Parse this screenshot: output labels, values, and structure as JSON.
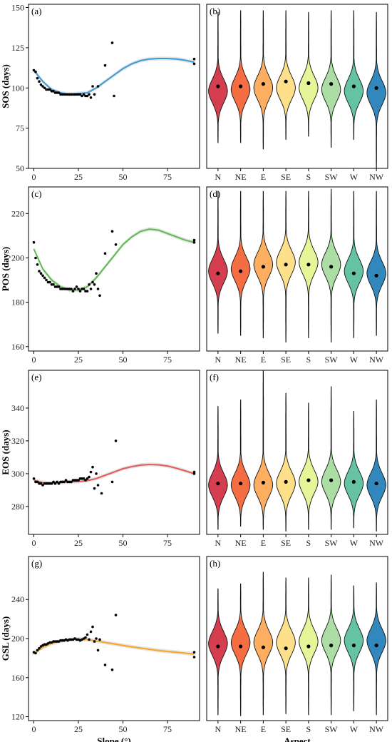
{
  "chart_data": [
    {
      "panel": "(a)",
      "type": "scatter",
      "ylabel": "SOS (days)",
      "xlim": [
        -3,
        93
      ],
      "ylim": [
        50,
        152
      ],
      "xticks": [
        "0",
        "25",
        "50",
        "75"
      ],
      "yticks": [
        "50",
        "75",
        "100",
        "125",
        "150"
      ],
      "curve_color": "#3A9AD9",
      "points": [
        [
          0,
          111
        ],
        [
          1,
          110
        ],
        [
          2,
          106
        ],
        [
          3,
          104
        ],
        [
          4,
          102
        ],
        [
          5,
          101
        ],
        [
          6,
          100
        ],
        [
          7,
          99
        ],
        [
          8,
          99
        ],
        [
          9,
          99
        ],
        [
          10,
          98
        ],
        [
          11,
          98
        ],
        [
          12,
          97
        ],
        [
          13,
          97
        ],
        [
          14,
          97
        ],
        [
          15,
          96
        ],
        [
          16,
          96
        ],
        [
          17,
          96
        ],
        [
          18,
          96
        ],
        [
          19,
          96
        ],
        [
          20,
          96
        ],
        [
          21,
          96
        ],
        [
          22,
          96
        ],
        [
          23,
          96
        ],
        [
          24,
          96
        ],
        [
          25,
          96
        ],
        [
          26,
          96
        ],
        [
          27,
          95
        ],
        [
          28,
          96
        ],
        [
          29,
          95
        ],
        [
          30,
          95
        ],
        [
          31,
          96
        ],
        [
          32,
          94
        ],
        [
          33,
          101
        ],
        [
          34,
          96
        ],
        [
          36,
          101
        ],
        [
          40,
          114
        ],
        [
          44,
          128
        ],
        [
          45,
          95
        ],
        [
          90,
          118
        ],
        [
          90,
          115
        ]
      ],
      "curve": [
        [
          0,
          111
        ],
        [
          5,
          104
        ],
        [
          10,
          99
        ],
        [
          15,
          97
        ],
        [
          20,
          96
        ],
        [
          25,
          96.5
        ],
        [
          30,
          97
        ],
        [
          35,
          100
        ],
        [
          40,
          104
        ],
        [
          45,
          108
        ],
        [
          50,
          112
        ],
        [
          55,
          115
        ],
        [
          60,
          117
        ],
        [
          65,
          118
        ],
        [
          70,
          118.3
        ],
        [
          75,
          118.3
        ],
        [
          80,
          118
        ],
        [
          85,
          117.2
        ],
        [
          90,
          116
        ]
      ]
    },
    {
      "panel": "(b)",
      "type": "violin",
      "ylim": [
        50,
        152
      ],
      "categories": [
        "N",
        "NE",
        "E",
        "SE",
        "S",
        "SW",
        "W",
        "NW"
      ],
      "colors": [
        "#D53E4F",
        "#F46D43",
        "#FDAE61",
        "#FEE08B",
        "#E6F598",
        "#ABDDA4",
        "#66C2A5",
        "#3288BD"
      ],
      "medians": [
        101,
        101,
        102.5,
        104,
        103,
        102.5,
        101,
        100
      ],
      "mins": [
        66,
        66,
        62,
        68,
        70,
        63,
        68,
        50
      ],
      "maxs": [
        147,
        148,
        148,
        148,
        147,
        148,
        148,
        147
      ],
      "modes": [
        98,
        99,
        100,
        100,
        100,
        99,
        98,
        97
      ]
    },
    {
      "panel": "(c)",
      "type": "scatter",
      "ylabel": "POS (days)",
      "xlim": [
        -3,
        93
      ],
      "ylim": [
        158,
        232
      ],
      "xticks": [
        "0",
        "25",
        "50",
        "75"
      ],
      "yticks": [
        "160",
        "180",
        "200",
        "220"
      ],
      "curve_color": "#5DBB4F",
      "points": [
        [
          0,
          207
        ],
        [
          1,
          200
        ],
        [
          2,
          197
        ],
        [
          3,
          194
        ],
        [
          4,
          193
        ],
        [
          5,
          192
        ],
        [
          6,
          191
        ],
        [
          7,
          190
        ],
        [
          8,
          189
        ],
        [
          9,
          189
        ],
        [
          10,
          188
        ],
        [
          11,
          188
        ],
        [
          12,
          187
        ],
        [
          13,
          187
        ],
        [
          14,
          187
        ],
        [
          15,
          186
        ],
        [
          16,
          186
        ],
        [
          17,
          186
        ],
        [
          18,
          186
        ],
        [
          19,
          186
        ],
        [
          20,
          186
        ],
        [
          21,
          186
        ],
        [
          22,
          185
        ],
        [
          23,
          186
        ],
        [
          24,
          187
        ],
        [
          25,
          186
        ],
        [
          26,
          185
        ],
        [
          27,
          186
        ],
        [
          28,
          186
        ],
        [
          29,
          185
        ],
        [
          30,
          185
        ],
        [
          31,
          188
        ],
        [
          32,
          186
        ],
        [
          33,
          189
        ],
        [
          34,
          188
        ],
        [
          35,
          193
        ],
        [
          36,
          186
        ],
        [
          37,
          183
        ],
        [
          40,
          202
        ],
        [
          44,
          212
        ],
        [
          46,
          206
        ],
        [
          90,
          207
        ],
        [
          90,
          208
        ]
      ],
      "curve": [
        [
          0,
          204
        ],
        [
          5,
          195
        ],
        [
          10,
          190
        ],
        [
          15,
          187
        ],
        [
          20,
          185.5
        ],
        [
          25,
          185.5
        ],
        [
          30,
          187
        ],
        [
          35,
          191
        ],
        [
          40,
          196
        ],
        [
          45,
          201
        ],
        [
          50,
          206
        ],
        [
          55,
          209.5
        ],
        [
          60,
          212
        ],
        [
          65,
          213
        ],
        [
          70,
          212.5
        ],
        [
          75,
          211
        ],
        [
          80,
          209.5
        ],
        [
          85,
          208
        ],
        [
          90,
          207
        ]
      ]
    },
    {
      "panel": "(d)",
      "type": "violin",
      "ylim": [
        158,
        232
      ],
      "categories": [
        "N",
        "NE",
        "E",
        "SE",
        "S",
        "SW",
        "W",
        "NW"
      ],
      "colors": [
        "#D53E4F",
        "#F46D43",
        "#FDAE61",
        "#FEE08B",
        "#E6F598",
        "#ABDDA4",
        "#66C2A5",
        "#3288BD"
      ],
      "medians": [
        193,
        194,
        196,
        197,
        197,
        196,
        193,
        192
      ],
      "mins": [
        166,
        165,
        164,
        162,
        164,
        162,
        164,
        165
      ],
      "maxs": [
        230,
        230,
        230,
        230,
        230,
        231,
        230,
        230
      ],
      "modes": [
        194,
        195,
        197,
        198,
        198,
        197,
        194,
        193
      ]
    },
    {
      "panel": "(e)",
      "type": "scatter",
      "ylabel": "EOS (days)",
      "xlim": [
        -3,
        93
      ],
      "ylim": [
        263,
        363
      ],
      "xticks": [
        "0",
        "25",
        "50",
        "75"
      ],
      "yticks": [
        "280",
        "300",
        "320",
        "340"
      ],
      "curve_color": "#E05A5A",
      "points": [
        [
          0,
          297
        ],
        [
          1,
          295
        ],
        [
          2,
          295
        ],
        [
          3,
          294
        ],
        [
          4,
          294
        ],
        [
          5,
          293
        ],
        [
          6,
          294
        ],
        [
          7,
          294
        ],
        [
          8,
          294
        ],
        [
          9,
          294
        ],
        [
          10,
          294
        ],
        [
          11,
          295
        ],
        [
          12,
          294
        ],
        [
          13,
          295
        ],
        [
          14,
          294
        ],
        [
          15,
          295
        ],
        [
          16,
          295
        ],
        [
          17,
          295
        ],
        [
          18,
          296
        ],
        [
          19,
          295
        ],
        [
          20,
          295
        ],
        [
          21,
          295
        ],
        [
          22,
          296
        ],
        [
          23,
          296
        ],
        [
          24,
          296
        ],
        [
          25,
          296
        ],
        [
          26,
          297
        ],
        [
          27,
          297
        ],
        [
          28,
          297
        ],
        [
          29,
          296
        ],
        [
          30,
          297
        ],
        [
          31,
          298
        ],
        [
          32,
          301
        ],
        [
          33,
          304
        ],
        [
          34,
          291
        ],
        [
          35,
          300
        ],
        [
          36,
          293
        ],
        [
          38,
          288
        ],
        [
          44,
          295
        ],
        [
          46,
          320
        ],
        [
          90,
          300
        ],
        [
          90,
          301
        ]
      ],
      "curve": [
        [
          0,
          296
        ],
        [
          5,
          294.5
        ],
        [
          10,
          294.3
        ],
        [
          15,
          294.6
        ],
        [
          20,
          295
        ],
        [
          25,
          295.2
        ],
        [
          30,
          295.8
        ],
        [
          35,
          297
        ],
        [
          40,
          299
        ],
        [
          45,
          301
        ],
        [
          50,
          303
        ],
        [
          55,
          304.3
        ],
        [
          60,
          305.2
        ],
        [
          65,
          305.6
        ],
        [
          70,
          305.4
        ],
        [
          75,
          304.7
        ],
        [
          80,
          303.3
        ],
        [
          85,
          301.7
        ],
        [
          90,
          300
        ]
      ]
    },
    {
      "panel": "(f)",
      "type": "violin",
      "ylim": [
        263,
        363
      ],
      "categories": [
        "N",
        "NE",
        "E",
        "SE",
        "S",
        "SW",
        "W",
        "NW"
      ],
      "colors": [
        "#D53E4F",
        "#F46D43",
        "#FDAE61",
        "#FEE08B",
        "#E6F598",
        "#ABDDA4",
        "#66C2A5",
        "#3288BD"
      ],
      "medians": [
        294,
        294,
        294.5,
        295,
        296,
        296,
        295,
        294
      ],
      "mins": [
        266,
        268,
        266,
        265,
        266,
        266,
        267,
        265
      ],
      "maxs": [
        341,
        345,
        363,
        349,
        343,
        353,
        338,
        345
      ],
      "modes": [
        293,
        293,
        293,
        294,
        295,
        295,
        294,
        293
      ]
    },
    {
      "panel": "(g)",
      "type": "scatter",
      "ylabel": "GSL (days)",
      "xlabel": "Slope (°)",
      "xlim": [
        -3,
        93
      ],
      "ylim": [
        116,
        284
      ],
      "xticks": [
        "0",
        "25",
        "50",
        "75"
      ],
      "yticks": [
        "120",
        "160",
        "200",
        "240"
      ],
      "curve_color": "#F5A623",
      "points": [
        [
          0,
          186
        ],
        [
          1,
          185
        ],
        [
          2,
          188
        ],
        [
          3,
          190
        ],
        [
          4,
          192
        ],
        [
          5,
          193
        ],
        [
          6,
          194
        ],
        [
          7,
          194
        ],
        [
          8,
          195
        ],
        [
          9,
          196
        ],
        [
          10,
          196
        ],
        [
          11,
          197
        ],
        [
          12,
          197
        ],
        [
          13,
          197
        ],
        [
          14,
          197
        ],
        [
          15,
          198
        ],
        [
          16,
          198
        ],
        [
          17,
          198
        ],
        [
          18,
          199
        ],
        [
          19,
          198
        ],
        [
          20,
          199
        ],
        [
          21,
          199
        ],
        [
          22,
          199
        ],
        [
          23,
          200
        ],
        [
          24,
          199
        ],
        [
          25,
          199
        ],
        [
          26,
          198
        ],
        [
          27,
          199
        ],
        [
          28,
          200
        ],
        [
          29,
          201
        ],
        [
          30,
          204
        ],
        [
          31,
          199
        ],
        [
          32,
          207
        ],
        [
          33,
          212
        ],
        [
          34,
          197
        ],
        [
          35,
          200
        ],
        [
          36,
          188
        ],
        [
          37,
          199
        ],
        [
          40,
          173
        ],
        [
          44,
          168
        ],
        [
          46,
          224
        ],
        [
          90,
          181
        ],
        [
          90,
          186
        ]
      ],
      "curve": [
        [
          0,
          185
        ],
        [
          5,
          191
        ],
        [
          10,
          195
        ],
        [
          15,
          197.5
        ],
        [
          20,
          199
        ],
        [
          25,
          199.5
        ],
        [
          30,
          199
        ],
        [
          35,
          197.5
        ],
        [
          40,
          196
        ],
        [
          45,
          194.5
        ],
        [
          50,
          193
        ],
        [
          55,
          191.5
        ],
        [
          60,
          190.2
        ],
        [
          65,
          189
        ],
        [
          70,
          187.8
        ],
        [
          75,
          186.8
        ],
        [
          80,
          186
        ],
        [
          85,
          185
        ],
        [
          90,
          184
        ]
      ]
    },
    {
      "panel": "(h)",
      "type": "violin",
      "xlabel": "Aspect",
      "ylim": [
        116,
        284
      ],
      "categories": [
        "N",
        "NE",
        "E",
        "SE",
        "S",
        "SW",
        "W",
        "NW"
      ],
      "colors": [
        "#D53E4F",
        "#F46D43",
        "#FDAE61",
        "#FEE08B",
        "#E6F598",
        "#ABDDA4",
        "#66C2A5",
        "#3288BD"
      ],
      "medians": [
        192,
        192,
        191,
        190,
        192,
        193,
        193,
        193
      ],
      "mins": [
        122,
        121,
        122,
        123,
        122,
        122,
        126,
        122
      ],
      "maxs": [
        251,
        256,
        268,
        262,
        262,
        265,
        254,
        257
      ],
      "modes": [
        195,
        196,
        196,
        196,
        197,
        198,
        198,
        198
      ]
    }
  ]
}
